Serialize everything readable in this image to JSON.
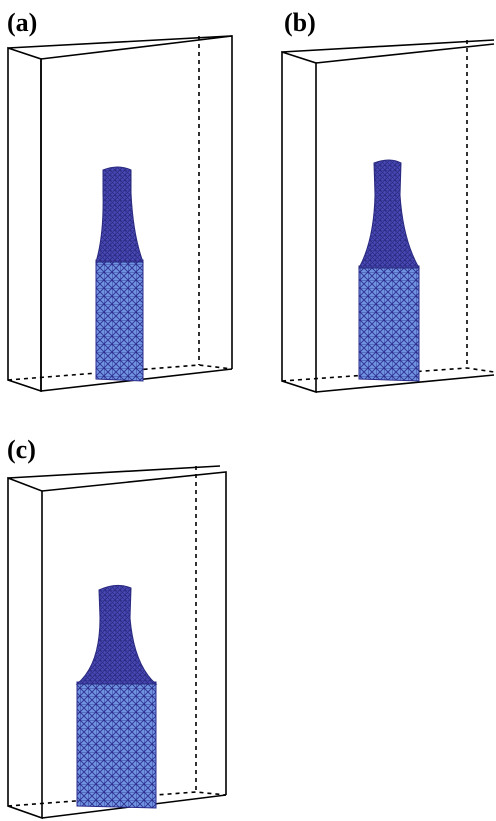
{
  "panels": [
    {
      "label": "(a)"
    },
    {
      "label": "(b)"
    },
    {
      "label": "(c)"
    }
  ],
  "colors": {
    "edge": "#000000",
    "mesh_fill": "#6f93e0",
    "mesh_line": "#2b2b8c",
    "mesh_dense": "#3a3aa8"
  }
}
